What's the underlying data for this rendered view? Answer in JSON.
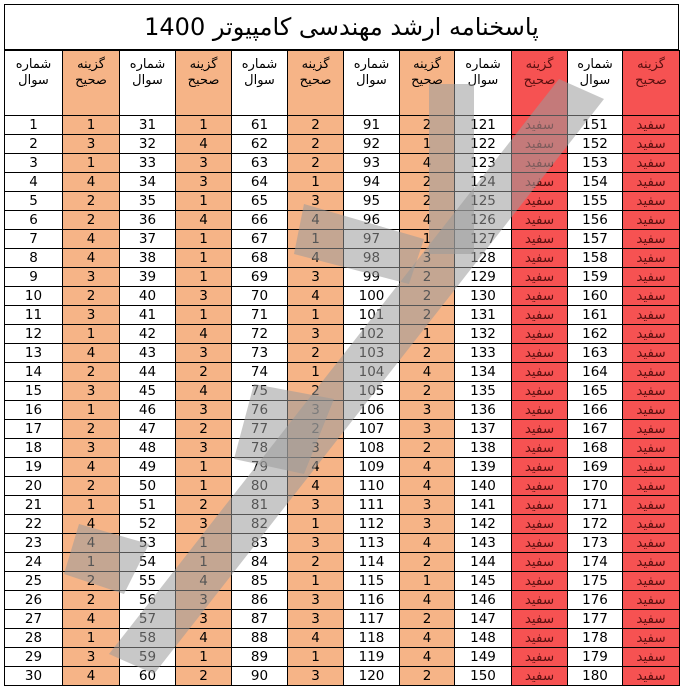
{
  "title": "پاسخنامه ارشد مهندسی کامپیوتر 1400",
  "header": {
    "question": "شماره سوال",
    "answer": "گزینه صحیح"
  },
  "blank_text": "سفید",
  "colors": {
    "answer_bg": "#f6b487",
    "blank_bg": "#f65252"
  },
  "rows": [
    [
      [
        151,
        "سفید"
      ],
      [
        121,
        "سفید"
      ],
      [
        91,
        "2"
      ],
      [
        61,
        "2"
      ],
      [
        31,
        "1"
      ],
      [
        1,
        "1"
      ]
    ],
    [
      [
        152,
        "سفید"
      ],
      [
        122,
        "سفید"
      ],
      [
        92,
        "1"
      ],
      [
        62,
        "2"
      ],
      [
        32,
        "4"
      ],
      [
        2,
        "3"
      ]
    ],
    [
      [
        153,
        "سفید"
      ],
      [
        123,
        "سفید"
      ],
      [
        93,
        "4"
      ],
      [
        63,
        "2"
      ],
      [
        33,
        "3"
      ],
      [
        3,
        "1"
      ]
    ],
    [
      [
        154,
        "سفید"
      ],
      [
        124,
        "سفید"
      ],
      [
        94,
        "2"
      ],
      [
        64,
        "1"
      ],
      [
        34,
        "3"
      ],
      [
        4,
        "4"
      ]
    ],
    [
      [
        155,
        "سفید"
      ],
      [
        125,
        "سفید"
      ],
      [
        95,
        "2"
      ],
      [
        65,
        "3"
      ],
      [
        35,
        "1"
      ],
      [
        5,
        "2"
      ]
    ],
    [
      [
        156,
        "سفید"
      ],
      [
        126,
        "سفید"
      ],
      [
        96,
        "4"
      ],
      [
        66,
        "4"
      ],
      [
        36,
        "4"
      ],
      [
        6,
        "2"
      ]
    ],
    [
      [
        157,
        "سفید"
      ],
      [
        127,
        "سفید"
      ],
      [
        97,
        "1"
      ],
      [
        67,
        "1"
      ],
      [
        37,
        "1"
      ],
      [
        7,
        "4"
      ]
    ],
    [
      [
        158,
        "سفید"
      ],
      [
        128,
        "سفید"
      ],
      [
        98,
        "3"
      ],
      [
        68,
        "4"
      ],
      [
        38,
        "1"
      ],
      [
        8,
        "4"
      ]
    ],
    [
      [
        159,
        "سفید"
      ],
      [
        129,
        "سفید"
      ],
      [
        99,
        "2"
      ],
      [
        69,
        "3"
      ],
      [
        39,
        "1"
      ],
      [
        9,
        "3"
      ]
    ],
    [
      [
        160,
        "سفید"
      ],
      [
        130,
        "سفید"
      ],
      [
        100,
        "2"
      ],
      [
        70,
        "4"
      ],
      [
        40,
        "3"
      ],
      [
        10,
        "2"
      ]
    ],
    [
      [
        161,
        "سفید"
      ],
      [
        131,
        "سفید"
      ],
      [
        101,
        "2"
      ],
      [
        71,
        "1"
      ],
      [
        41,
        "1"
      ],
      [
        11,
        "3"
      ]
    ],
    [
      [
        162,
        "سفید"
      ],
      [
        132,
        "سفید"
      ],
      [
        102,
        "1"
      ],
      [
        72,
        "3"
      ],
      [
        42,
        "4"
      ],
      [
        12,
        "1"
      ]
    ],
    [
      [
        163,
        "سفید"
      ],
      [
        133,
        "سفید"
      ],
      [
        103,
        "2"
      ],
      [
        73,
        "2"
      ],
      [
        43,
        "3"
      ],
      [
        13,
        "4"
      ]
    ],
    [
      [
        164,
        "سفید"
      ],
      [
        134,
        "سفید"
      ],
      [
        104,
        "4"
      ],
      [
        74,
        "1"
      ],
      [
        44,
        "2"
      ],
      [
        14,
        "2"
      ]
    ],
    [
      [
        165,
        "سفید"
      ],
      [
        135,
        "سفید"
      ],
      [
        105,
        "2"
      ],
      [
        75,
        "2"
      ],
      [
        45,
        "4"
      ],
      [
        15,
        "3"
      ]
    ],
    [
      [
        166,
        "سفید"
      ],
      [
        136,
        "سفید"
      ],
      [
        106,
        "3"
      ],
      [
        76,
        "3"
      ],
      [
        46,
        "3"
      ],
      [
        16,
        "1"
      ]
    ],
    [
      [
        167,
        "سفید"
      ],
      [
        137,
        "سفید"
      ],
      [
        107,
        "3"
      ],
      [
        77,
        "2"
      ],
      [
        47,
        "2"
      ],
      [
        17,
        "2"
      ]
    ],
    [
      [
        168,
        "سفید"
      ],
      [
        138,
        "سفید"
      ],
      [
        108,
        "2"
      ],
      [
        78,
        "3"
      ],
      [
        48,
        "3"
      ],
      [
        18,
        "3"
      ]
    ],
    [
      [
        169,
        "سفید"
      ],
      [
        139,
        "سفید"
      ],
      [
        109,
        "4"
      ],
      [
        79,
        "4"
      ],
      [
        49,
        "1"
      ],
      [
        19,
        "4"
      ]
    ],
    [
      [
        170,
        "سفید"
      ],
      [
        140,
        "سفید"
      ],
      [
        110,
        "4"
      ],
      [
        80,
        "4"
      ],
      [
        50,
        "1"
      ],
      [
        20,
        "2"
      ]
    ],
    [
      [
        171,
        "سفید"
      ],
      [
        141,
        "سفید"
      ],
      [
        111,
        "3"
      ],
      [
        81,
        "3"
      ],
      [
        51,
        "2"
      ],
      [
        21,
        "1"
      ]
    ],
    [
      [
        172,
        "سفید"
      ],
      [
        142,
        "سفید"
      ],
      [
        112,
        "3"
      ],
      [
        82,
        "1"
      ],
      [
        52,
        "3"
      ],
      [
        22,
        "4"
      ]
    ],
    [
      [
        173,
        "سفید"
      ],
      [
        143,
        "سفید"
      ],
      [
        113,
        "4"
      ],
      [
        83,
        "3"
      ],
      [
        53,
        "1"
      ],
      [
        23,
        "4"
      ]
    ],
    [
      [
        174,
        "سفید"
      ],
      [
        144,
        "سفید"
      ],
      [
        114,
        "2"
      ],
      [
        84,
        "2"
      ],
      [
        54,
        "1"
      ],
      [
        24,
        "1"
      ]
    ],
    [
      [
        175,
        "سفید"
      ],
      [
        145,
        "سفید"
      ],
      [
        115,
        "1"
      ],
      [
        85,
        "1"
      ],
      [
        55,
        "4"
      ],
      [
        25,
        "2"
      ]
    ],
    [
      [
        176,
        "سفید"
      ],
      [
        146,
        "سفید"
      ],
      [
        116,
        "4"
      ],
      [
        86,
        "3"
      ],
      [
        56,
        "3"
      ],
      [
        26,
        "2"
      ]
    ],
    [
      [
        177,
        "سفید"
      ],
      [
        147,
        "سفید"
      ],
      [
        117,
        "2"
      ],
      [
        87,
        "3"
      ],
      [
        57,
        "3"
      ],
      [
        27,
        "4"
      ]
    ],
    [
      [
        178,
        "سفید"
      ],
      [
        148,
        "سفید"
      ],
      [
        118,
        "4"
      ],
      [
        88,
        "4"
      ],
      [
        58,
        "4"
      ],
      [
        28,
        "1"
      ]
    ],
    [
      [
        179,
        "سفید"
      ],
      [
        149,
        "سفید"
      ],
      [
        119,
        "4"
      ],
      [
        89,
        "1"
      ],
      [
        59,
        "1"
      ],
      [
        29,
        "3"
      ]
    ],
    [
      [
        180,
        "سفید"
      ],
      [
        150,
        "سفید"
      ],
      [
        120,
        "2"
      ],
      [
        90,
        "3"
      ],
      [
        60,
        "2"
      ],
      [
        30,
        "4"
      ]
    ]
  ]
}
